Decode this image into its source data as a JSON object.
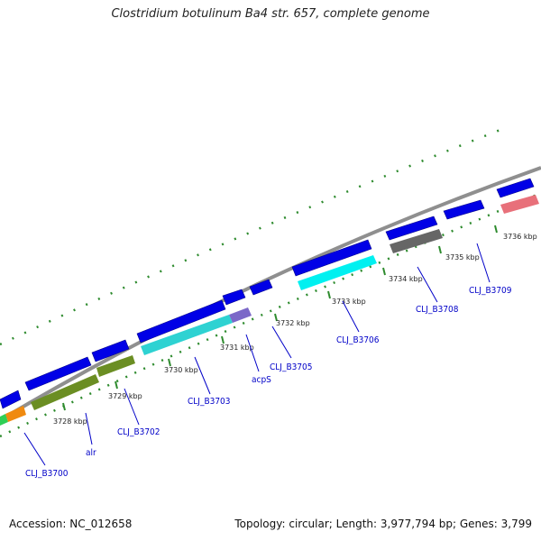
{
  "title": "Clostridium botulinum Ba4 str. 657, complete genome",
  "footer": {
    "accession": "Accession: NC_012658",
    "stats": "Topology: circular; Length: 3,977,794 bp; Genes: 3,799"
  },
  "ticks": [
    "3728 kbp",
    "3729 kbp",
    "3730 kbp",
    "3731 kbp",
    "3732 kbp",
    "3733 kbp",
    "3734 kbp",
    "3735 kbp",
    "3736 kbp"
  ],
  "genes": [
    "CLJ_B3700",
    "alr",
    "CLJ_B3702",
    "CLJ_B3703",
    "acpS",
    "CLJ_B3705",
    "CLJ_B3706",
    "CLJ_B3708",
    "CLJ_B3709"
  ],
  "colors": {
    "backbone": "#8a8a8a",
    "forward": "#0000e6",
    "label": "#0000c8",
    "gc": "#2e8b2e"
  }
}
